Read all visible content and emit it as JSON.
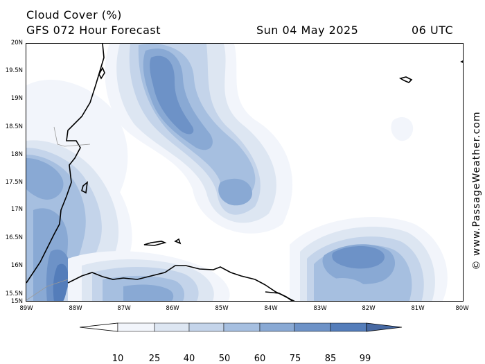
{
  "header": {
    "title": "Cloud Cover (%)",
    "subtitle": "GFS 072 Hour Forecast",
    "valid_date": "Sun 04 May 2025",
    "valid_time": "06 UTC"
  },
  "map": {
    "lat_labels": [
      "20N",
      "19.5N",
      "19N",
      "18.5N",
      "18N",
      "17.5N",
      "17N",
      "16.5N",
      "16N",
      "15.5N",
      "15N"
    ],
    "lon_labels": [
      "89W",
      "88W",
      "87W",
      "86W",
      "85W",
      "84W",
      "83W",
      "82W",
      "81W",
      "80W"
    ],
    "colors": {
      "c10": "#f2f5fb",
      "c25": "#dde6f2",
      "c40": "#c4d4ea",
      "c50": "#a6bfe0",
      "c60": "#89a9d4",
      "c75": "#6d92c7",
      "c85": "#547dba",
      "c99": "#4769a3",
      "coast": "#000000",
      "border": "#9a9a9a"
    }
  },
  "legend": {
    "labels": [
      "10",
      "25",
      "40",
      "50",
      "60",
      "75",
      "85",
      "99"
    ]
  },
  "copyright": "© www.PassageWeather.com"
}
